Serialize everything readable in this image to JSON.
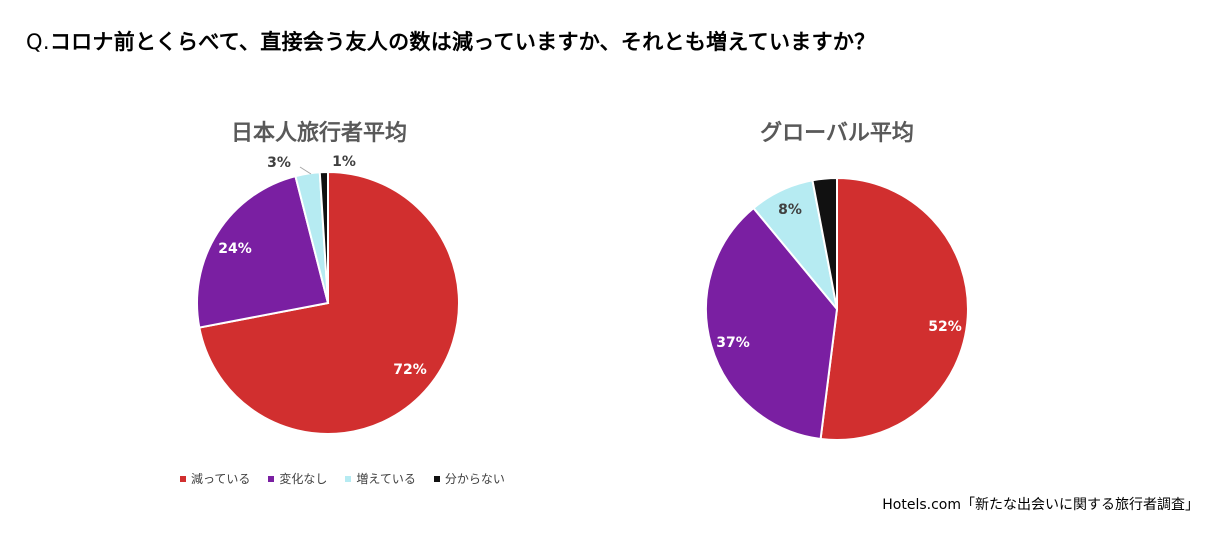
{
  "question": {
    "prefix": "Q.",
    "text": "コロナ前とくらべて、直接会う友人の数は減っていますか、それとも増えていますか？"
  },
  "source": "Hotels.com「新たな出会いに関する旅行者調査」",
  "colors": {
    "decreasing": "#d12f2f",
    "no_change": "#7a1fa2",
    "increasing": "#b6ebf2",
    "unknown": "#111111"
  },
  "legend": [
    {
      "label": "減っている",
      "color": "#d12f2f"
    },
    {
      "label": "変化なし",
      "color": "#7a1fa2"
    },
    {
      "label": "増えている",
      "color": "#b6ebf2"
    },
    {
      "label": "分からない",
      "color": "#111111"
    }
  ],
  "chart_data": [
    {
      "type": "pie",
      "title": "日本人旅行者平均",
      "categories": [
        "減っている",
        "変化なし",
        "増えている",
        "分からない"
      ],
      "values": [
        72,
        24,
        3,
        1
      ],
      "labels": [
        "72%",
        "24%",
        "3%",
        "1%"
      ]
    },
    {
      "type": "pie",
      "title": "グローバル平均",
      "categories": [
        "減っている",
        "変化なし",
        "増えている",
        "分からない"
      ],
      "values": [
        52,
        37,
        8,
        3
      ],
      "labels": [
        "52%",
        "37%",
        "8%",
        ""
      ]
    }
  ]
}
